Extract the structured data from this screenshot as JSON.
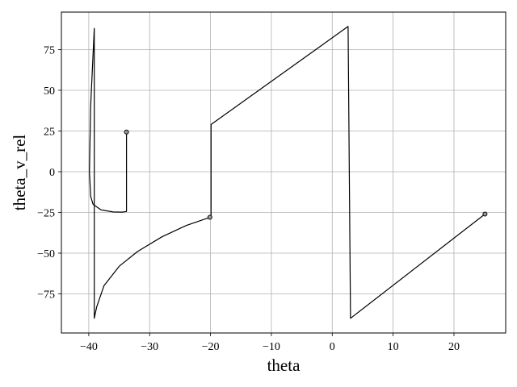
{
  "chart_data": {
    "type": "line",
    "title": "",
    "xlabel": "theta",
    "ylabel": "theta_v_rel",
    "xlim": [
      -44.5,
      28.5
    ],
    "ylim": [
      -99,
      98
    ],
    "grid": true,
    "x_ticks": [
      -40,
      -30,
      -20,
      -10,
      0,
      10,
      20
    ],
    "x_tick_labels": [
      "−40",
      "−30",
      "−20",
      "−10",
      "0",
      "10",
      "20"
    ],
    "y_ticks": [
      -75,
      -50,
      -25,
      0,
      25,
      50,
      75
    ],
    "y_tick_labels": [
      "−75",
      "−50",
      "−25",
      "0",
      "25",
      "50",
      "75"
    ],
    "series": [
      {
        "color": "#000000",
        "x": [
          -33.8,
          -33.8,
          -34.5,
          -36,
          -38,
          -39.3,
          -39.7,
          -39.9,
          -39.7,
          -39.1,
          -39.1,
          -38.7,
          -37.5,
          -35,
          -32,
          -28,
          -24,
          -20.1,
          -19.9,
          -19.9,
          2.6,
          3.0,
          25.1
        ],
        "y": [
          24.4,
          -24.4,
          -24.8,
          -24.7,
          -23.4,
          -20,
          -15,
          0,
          40,
          88,
          -90,
          -83,
          -70,
          -58,
          -49,
          -40,
          -33,
          -28,
          -27.8,
          29,
          89.2,
          -90,
          -26
        ]
      }
    ],
    "markers": [
      {
        "x": -33.8,
        "y": 24.4
      },
      {
        "x": -20.1,
        "y": -28
      },
      {
        "x": 25.1,
        "y": -26
      }
    ],
    "legend": "none"
  }
}
